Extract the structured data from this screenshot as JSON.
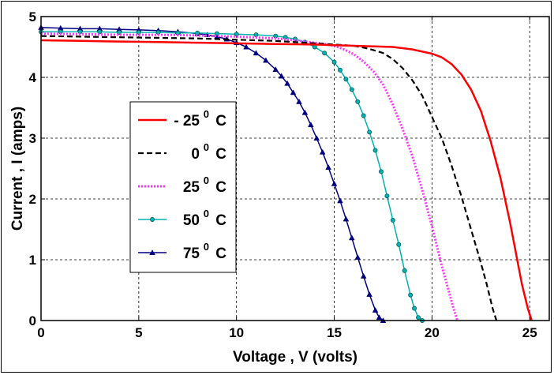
{
  "chart_data": {
    "type": "line",
    "title": "",
    "xlabel": "Voltage ,  V  (volts)",
    "ylabel": "Current ,  I  (amps)",
    "xlim": [
      0,
      26
    ],
    "ylim": [
      0,
      5
    ],
    "xticks": [
      0,
      5,
      10,
      15,
      20,
      25
    ],
    "yticks": [
      0,
      1,
      2,
      3,
      4,
      5
    ],
    "grid": true,
    "legend_position": "center-left",
    "series": [
      {
        "name": "- 25 0 C",
        "legend_parts": [
          "- 25",
          "0",
          "C"
        ],
        "color": "#ff0000",
        "style": "solid",
        "marker": "none",
        "x": [
          0,
          2,
          4,
          6,
          8,
          10,
          12,
          14,
          15,
          16,
          17,
          18,
          19,
          20,
          20.5,
          21,
          21.5,
          22,
          22.5,
          23,
          23.5,
          24,
          24.3,
          24.6,
          24.9,
          25.1
        ],
        "y": [
          4.61,
          4.6,
          4.59,
          4.58,
          4.57,
          4.56,
          4.55,
          4.54,
          4.53,
          4.52,
          4.51,
          4.5,
          4.46,
          4.39,
          4.33,
          4.22,
          4.05,
          3.8,
          3.45,
          2.95,
          2.35,
          1.6,
          1.1,
          0.6,
          0.2,
          0
        ]
      },
      {
        "name": "0 0 C",
        "legend_parts": [
          "0",
          "0",
          "C"
        ],
        "color": "#000000",
        "style": "dashed",
        "marker": "none",
        "x": [
          0,
          2,
          4,
          6,
          8,
          10,
          12,
          14,
          15,
          16,
          16.5,
          17,
          17.5,
          18,
          18.5,
          19,
          19.5,
          20,
          20.5,
          21,
          21.5,
          22,
          22.5,
          22.8,
          23.1,
          23.3
        ],
        "y": [
          4.68,
          4.67,
          4.66,
          4.65,
          4.64,
          4.62,
          4.6,
          4.56,
          4.54,
          4.52,
          4.49,
          4.45,
          4.4,
          4.3,
          4.15,
          3.95,
          3.7,
          3.35,
          3.0,
          2.55,
          2.05,
          1.5,
          0.95,
          0.6,
          0.2,
          0
        ]
      },
      {
        "name": "25 0 C",
        "legend_parts": [
          "25",
          "0",
          "C"
        ],
        "color": "#ff33ff",
        "style": "dotted",
        "marker": "none",
        "x": [
          0,
          2,
          4,
          6,
          8,
          10,
          12,
          13,
          14,
          14.5,
          15,
          15.5,
          16,
          16.5,
          17,
          17.5,
          18,
          18.5,
          19,
          19.5,
          20,
          20.5,
          20.8,
          21.1,
          21.3
        ],
        "y": [
          4.72,
          4.71,
          4.7,
          4.7,
          4.69,
          4.67,
          4.64,
          4.61,
          4.57,
          4.55,
          4.52,
          4.46,
          4.38,
          4.26,
          4.1,
          3.88,
          3.55,
          3.15,
          2.7,
          2.15,
          1.55,
          0.9,
          0.55,
          0.2,
          0
        ]
      },
      {
        "name": "50 0 C",
        "legend_parts": [
          "50",
          "0",
          "C"
        ],
        "color": "#00b3b3",
        "style": "solid",
        "marker": "circle",
        "x": [
          0,
          1,
          2,
          3,
          4,
          5,
          6,
          7,
          8,
          9,
          10,
          11,
          12,
          12.5,
          13,
          13.5,
          14,
          14.5,
          15,
          15.3,
          15.6,
          15.9,
          16.2,
          16.5,
          16.8,
          17.1,
          17.4,
          17.7,
          18.0,
          18.3,
          18.6,
          18.9,
          19.1,
          19.3,
          19.5
        ],
        "y": [
          4.75,
          4.75,
          4.75,
          4.75,
          4.74,
          4.74,
          4.74,
          4.73,
          4.73,
          4.72,
          4.71,
          4.7,
          4.68,
          4.66,
          4.63,
          4.58,
          4.5,
          4.4,
          4.25,
          4.12,
          3.97,
          3.8,
          3.6,
          3.37,
          3.1,
          2.8,
          2.45,
          2.05,
          1.65,
          1.25,
          0.82,
          0.42,
          0.2,
          0.05,
          0
        ]
      },
      {
        "name": "75 0 C",
        "legend_parts": [
          "75",
          "0",
          "C"
        ],
        "color": "#000080",
        "style": "solid",
        "marker": "triangle",
        "x": [
          0,
          1,
          2,
          3,
          4,
          5,
          6,
          7,
          8,
          8.5,
          9,
          9.5,
          10,
          10.5,
          11,
          11.5,
          12,
          12.3,
          12.6,
          12.9,
          13.2,
          13.5,
          13.8,
          14.1,
          14.4,
          14.7,
          15.0,
          15.3,
          15.6,
          15.9,
          16.2,
          16.5,
          16.8,
          17.1,
          17.3,
          17.5
        ],
        "y": [
          4.82,
          4.81,
          4.8,
          4.8,
          4.79,
          4.78,
          4.77,
          4.75,
          4.72,
          4.7,
          4.67,
          4.63,
          4.57,
          4.5,
          4.4,
          4.28,
          4.13,
          4.02,
          3.9,
          3.75,
          3.6,
          3.42,
          3.22,
          3.0,
          2.77,
          2.52,
          2.25,
          1.97,
          1.67,
          1.36,
          1.04,
          0.73,
          0.43,
          0.17,
          0.05,
          0
        ]
      }
    ]
  }
}
